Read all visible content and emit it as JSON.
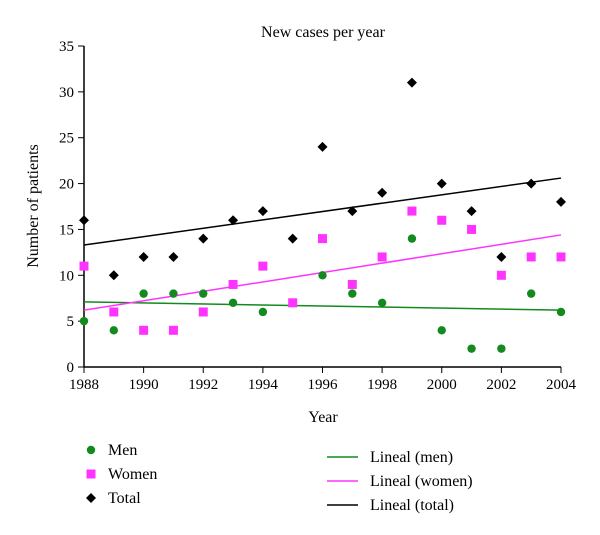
{
  "chart_data": {
    "type": "scatter",
    "title": "New cases per year",
    "xlabel": "Year",
    "ylabel": "Number of patients",
    "xlim": [
      1988,
      2004
    ],
    "ylim": [
      0,
      35
    ],
    "xticks": [
      1988,
      1990,
      1992,
      1994,
      1996,
      1998,
      2000,
      2002,
      2004
    ],
    "yticks": [
      0,
      5,
      10,
      15,
      20,
      25,
      30,
      35
    ],
    "grid": false,
    "legend_position": "bottom",
    "x": [
      1988,
      1989,
      1990,
      1991,
      1992,
      1993,
      1994,
      1995,
      1996,
      1997,
      1998,
      1999,
      2000,
      2001,
      2002,
      2003,
      2004
    ],
    "series": [
      {
        "name": "Men",
        "marker": "circle",
        "color": "#138a1e",
        "values": [
          5,
          4,
          8,
          8,
          8,
          7,
          6,
          7,
          10,
          8,
          7,
          14,
          4,
          2,
          2,
          8,
          6
        ]
      },
      {
        "name": "Women",
        "marker": "square",
        "color": "#ff33ff",
        "values": [
          11,
          6,
          4,
          4,
          6,
          9,
          11,
          7,
          14,
          9,
          12,
          17,
          16,
          15,
          10,
          12,
          12
        ]
      },
      {
        "name": "Total",
        "marker": "diamond",
        "color": "#000000",
        "values": [
          16,
          10,
          12,
          12,
          14,
          16,
          17,
          14,
          24,
          17,
          19,
          31,
          20,
          17,
          12,
          20,
          18
        ]
      }
    ],
    "trendlines": [
      {
        "name": "Lineal (men)",
        "color": "#138a1e",
        "y_start": 7.1,
        "y_end": 6.2
      },
      {
        "name": "Lineal (women)",
        "color": "#ff33ff",
        "y_start": 6.2,
        "y_end": 14.4
      },
      {
        "name": "Lineal (total)",
        "color": "#000000",
        "y_start": 13.3,
        "y_end": 20.6
      }
    ]
  }
}
